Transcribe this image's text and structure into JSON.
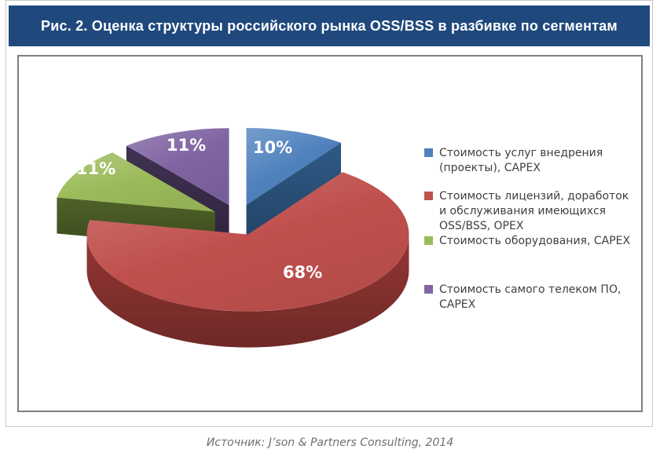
{
  "header": {
    "title": "Рис. 2. Оценка структуры российского рынка OSS/BSS в разбивке по сегментам"
  },
  "source": {
    "text": "Источник: J’son & Partners Consulting, 2014"
  },
  "colors": {
    "header_bg": "#1f497d",
    "header_text": "#ffffff",
    "frame_border": "#7f7f7f",
    "outer_border": "#c9c9c9",
    "legend_text": "#3f3f3f",
    "source_text": "#6f6f6f"
  },
  "chart_data": {
    "type": "pie",
    "style": "3d-exploded",
    "unit": "%",
    "title": "Оценка структуры российского рынка OSS/BSS в разбивке по сегментам",
    "legend_position": "right",
    "grid": false,
    "slices": [
      {
        "label": "Стоимость услуг внедрения (проекты), CAPEX",
        "value": 10,
        "data_label": "10%",
        "color": "#4f81bd",
        "side_color": "#2e5a87"
      },
      {
        "label": "Стоимость лицензий, доработок и обслуживания имеющихся OSS/BSS, OPEX",
        "value": 68,
        "data_label": "68%",
        "color": "#c0504d",
        "side_color": "#943634"
      },
      {
        "label": "Стоимость оборудования, CAPEX",
        "value": 11,
        "data_label": "11%",
        "color": "#9bbb59",
        "side_color": "#4f6228"
      },
      {
        "label": "Стоимость самого телеком ПО, CAPEX",
        "value": 11,
        "data_label": "11%",
        "color": "#8064a2",
        "side_color": "#403152"
      }
    ]
  },
  "legend": {
    "items": [
      {
        "lines": [
          "Стоимость услуг внедрения",
          "(проекты), CAPEX"
        ],
        "color": "#4f81bd"
      },
      {
        "lines": [
          "Стоимость лицензий, доработок",
          "и обслуживания имеющихся",
          "OSS/BSS, OPEX"
        ],
        "color": "#c0504d"
      },
      {
        "lines": [
          "Стоимость оборудования, CAPEX"
        ],
        "color": "#9bbb59"
      },
      {
        "lines": [
          "Стоимость самого телеком ПО,",
          "CAPEX"
        ],
        "color": "#8064a2"
      }
    ]
  }
}
